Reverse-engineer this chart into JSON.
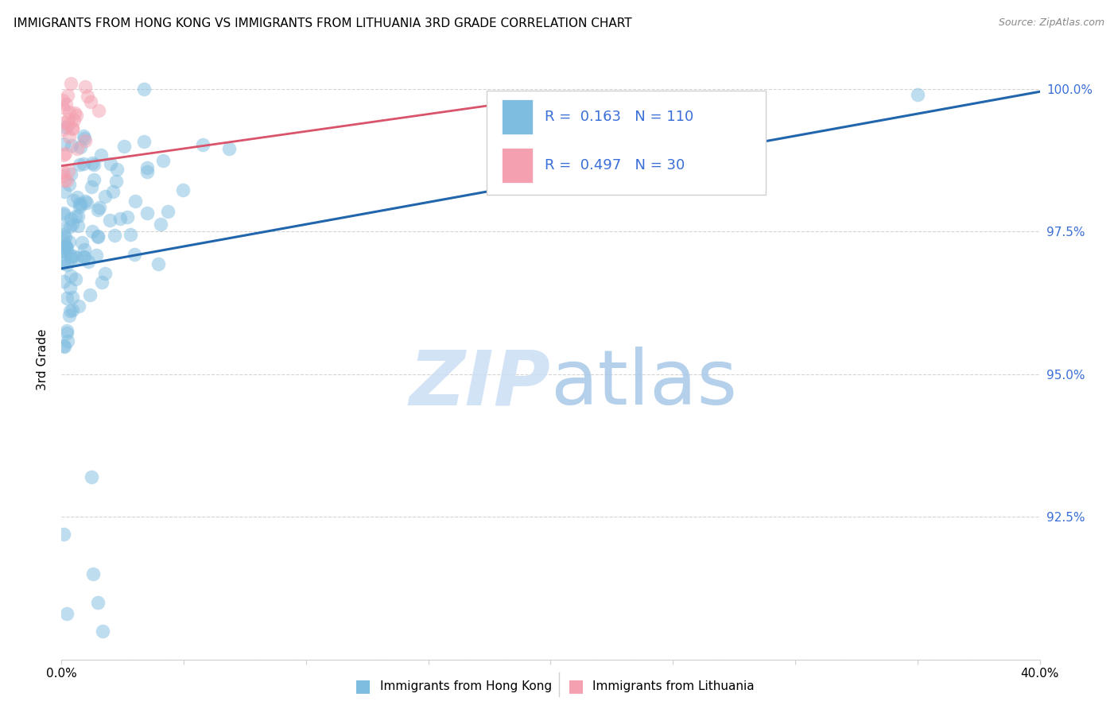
{
  "title": "IMMIGRANTS FROM HONG KONG VS IMMIGRANTS FROM LITHUANIA 3RD GRADE CORRELATION CHART",
  "source": "Source: ZipAtlas.com",
  "ylabel": "3rd Grade",
  "xlim": [
    0.0,
    0.4
  ],
  "ylim": [
    0.9,
    1.005
  ],
  "xtick_positions": [
    0.0,
    0.05,
    0.1,
    0.15,
    0.2,
    0.25,
    0.3,
    0.35,
    0.4
  ],
  "xticklabels": [
    "0.0%",
    "",
    "",
    "",
    "",
    "",
    "",
    "",
    "40.0%"
  ],
  "ytick_positions": [
    0.9,
    0.925,
    0.95,
    0.975,
    1.0
  ],
  "yticklabels_right": [
    "",
    "92.5%",
    "95.0%",
    "97.5%",
    "100.0%"
  ],
  "legend_label1": "Immigrants from Hong Kong",
  "legend_label2": "Immigrants from Lithuania",
  "R1": 0.163,
  "N1": 110,
  "R2": 0.497,
  "N2": 30,
  "color_blue": "#7fbde0",
  "color_pink": "#f4a0b0",
  "line_color_blue": "#2166ac",
  "line_color_pink": "#d9546a",
  "blue_line_x": [
    0.0,
    0.4
  ],
  "blue_line_y": [
    0.9685,
    0.9995
  ],
  "pink_line_x": [
    0.0,
    0.215
  ],
  "pink_line_y": [
    0.9865,
    0.9995
  ],
  "right_tick_color": "#3a6fd8",
  "grid_color": "#d0d0d0",
  "watermark_zip_color": "#ccdff5",
  "watermark_atlas_color": "#a8c8e8"
}
